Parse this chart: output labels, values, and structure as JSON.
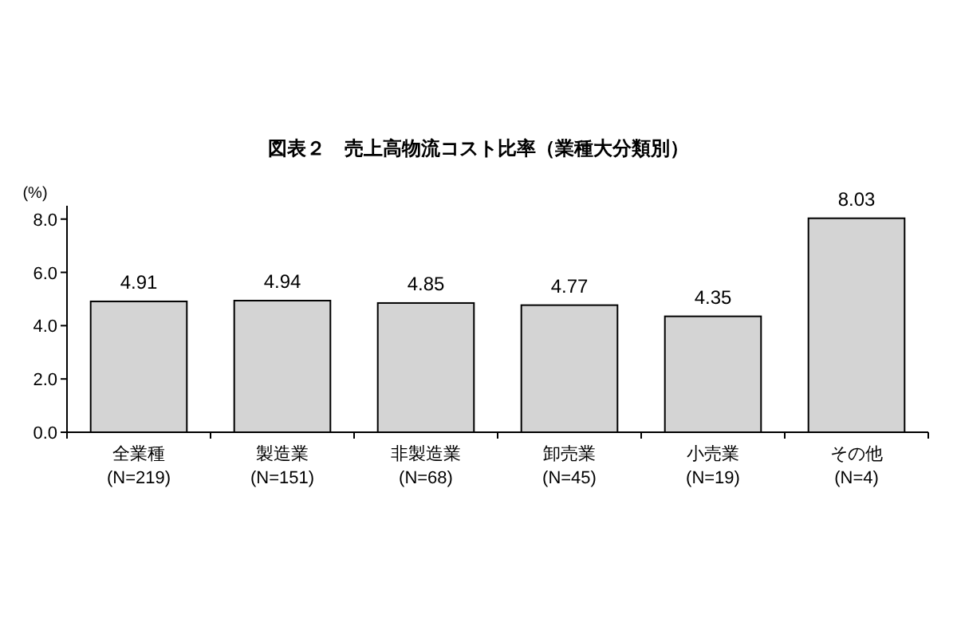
{
  "chart_data": {
    "type": "bar",
    "title": "図表２　売上高物流コスト比率（業種大分類別）",
    "ylabel": "(%)",
    "categories": [
      "全業種\n(N=219)",
      "製造業\n(N=151)",
      "非製造業\n(N=68)",
      "卸売業\n(N=45)",
      "小売業\n(N=19)",
      "その他\n(N=4)"
    ],
    "values": [
      4.91,
      4.94,
      4.85,
      4.77,
      4.35,
      8.03
    ],
    "color": "#d4d4d4",
    "data_labels": true,
    "grid": false,
    "ylim": [
      0,
      8.5
    ],
    "yticks": [
      {
        "value": 0,
        "label": "0.0"
      },
      {
        "value": 2,
        "label": "2.0"
      },
      {
        "value": 4,
        "label": "4.0"
      },
      {
        "value": 6,
        "label": "6.0"
      },
      {
        "value": 8,
        "label": "8.0"
      }
    ]
  }
}
